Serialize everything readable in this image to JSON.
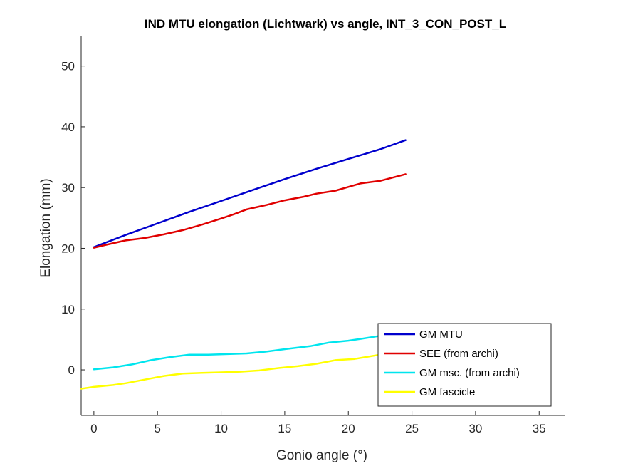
{
  "chart_data": {
    "type": "line",
    "title": "IND MTU elongation (Lichtwark) vs angle, INT_3_CON_POST_L",
    "xlabel": "Gonio angle (°)",
    "ylabel": "Elongation (mm)",
    "xlim": [
      -1,
      37
    ],
    "ylim": [
      -7.5,
      55
    ],
    "xticks": [
      0,
      5,
      10,
      15,
      20,
      25,
      30,
      35
    ],
    "yticks": [
      0,
      10,
      20,
      30,
      40,
      50
    ],
    "grid": false,
    "legend_position": "bottom-right",
    "series": [
      {
        "name": "GM MTU",
        "color": "#0000cd",
        "x": [
          0,
          2.5,
          5,
          7.5,
          10,
          12.5,
          15,
          17.5,
          20,
          22.5,
          24.5
        ],
        "y": [
          20.2,
          22.2,
          24.1,
          26.0,
          27.8,
          29.6,
          31.4,
          33.1,
          34.7,
          36.3,
          37.8
        ]
      },
      {
        "name": "SEE (from archi)",
        "color": "#e00000",
        "x": [
          0,
          1,
          2.5,
          4,
          5.5,
          7,
          8.5,
          10,
          11,
          12,
          13.5,
          15,
          16.5,
          17.5,
          19,
          20,
          21,
          22.5,
          24.5
        ],
        "y": [
          20.1,
          20.6,
          21.3,
          21.7,
          22.3,
          23.0,
          23.9,
          24.9,
          25.6,
          26.4,
          27.1,
          27.9,
          28.5,
          29.0,
          29.5,
          30.1,
          30.7,
          31.1,
          32.2
        ]
      },
      {
        "name": "GM msc. (from archi)",
        "color": "#00e5ee",
        "x": [
          0,
          1.5,
          3,
          4.5,
          6,
          7.5,
          9,
          10.5,
          12,
          13.5,
          15,
          17,
          18.5,
          20,
          21,
          22.5
        ],
        "y": [
          0.1,
          0.4,
          0.9,
          1.6,
          2.1,
          2.5,
          2.5,
          2.6,
          2.7,
          3.0,
          3.4,
          3.9,
          4.5,
          4.8,
          5.1,
          5.6
        ]
      },
      {
        "name": "GM fascicle",
        "color": "#ffff00",
        "x": [
          -1,
          0,
          1.5,
          2.5,
          4,
          5.5,
          7,
          8.5,
          10,
          11.5,
          13,
          14.5,
          16,
          17.5,
          19,
          20.5,
          22.5
        ],
        "y": [
          -3.1,
          -2.8,
          -2.5,
          -2.2,
          -1.6,
          -1.0,
          -0.6,
          -0.5,
          -0.4,
          -0.3,
          -0.1,
          0.3,
          0.6,
          1.0,
          1.6,
          1.8,
          2.5
        ]
      }
    ]
  }
}
